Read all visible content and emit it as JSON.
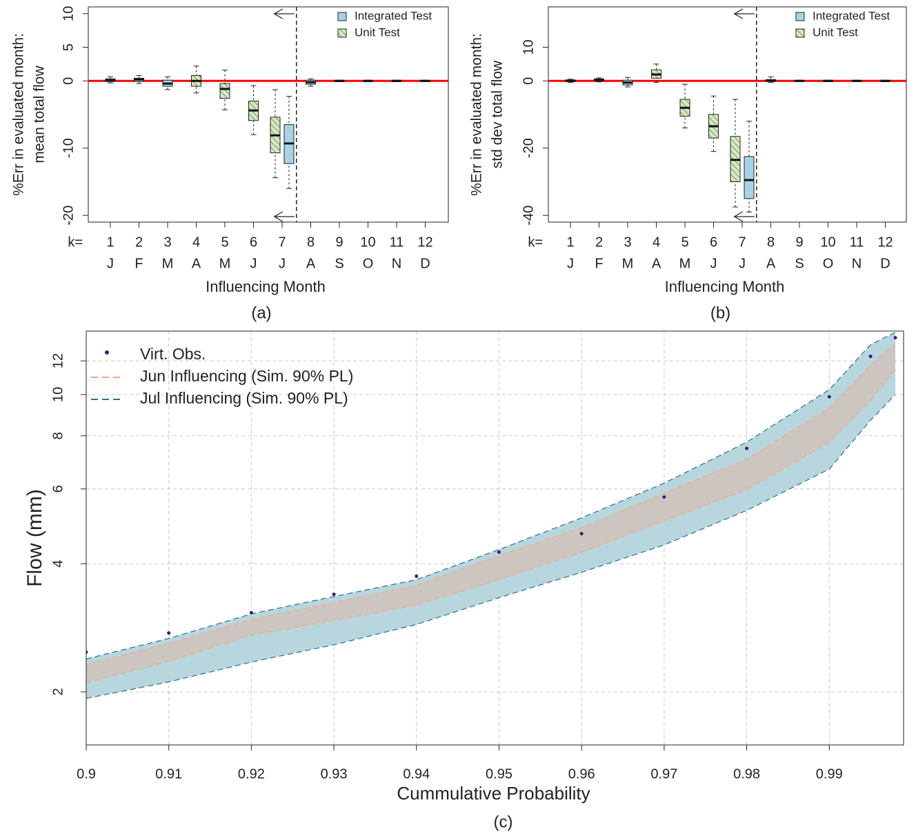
{
  "chart_data": [
    {
      "type": "box",
      "panel_label": "(a)",
      "y_label": [
        "%Err in evaluated month:",
        "mean total flow"
      ],
      "x_label": "Influencing Month",
      "x_prefix": "k=",
      "categories": [
        "1",
        "2",
        "3",
        "4",
        "5",
        "6",
        "7",
        "8",
        "9",
        "10",
        "11",
        "12"
      ],
      "category_letters": [
        "J",
        "F",
        "M",
        "A",
        "M",
        "J",
        "J",
        "A",
        "S",
        "O",
        "N",
        "D"
      ],
      "ylim": [
        -21,
        11
      ],
      "yticks": [
        -20,
        -10,
        0,
        5,
        10
      ],
      "hline": 0,
      "hline_color": "#ff0000",
      "vline": 7.5,
      "legend": "top-right",
      "series": [
        {
          "name": "Integrated Test",
          "color": "#a8d3e6",
          "pattern": "solid",
          "boxes": [
            {
              "low": -0.3,
              "q1": -0.1,
              "median": 0.1,
              "q3": 0.3,
              "high": 0.6
            },
            {
              "low": -0.4,
              "q1": -0.1,
              "median": 0.2,
              "q3": 0.4,
              "high": 0.8
            },
            {
              "low": -1.3,
              "q1": -0.8,
              "median": -0.4,
              "q3": 0.1,
              "high": 0.6
            },
            null,
            null,
            null,
            {
              "low": -16,
              "q1": -12.3,
              "median": -9.3,
              "q3": -6.5,
              "high": -2.3
            },
            {
              "low": -0.8,
              "q1": -0.5,
              "median": -0.2,
              "q3": 0.1,
              "high": 0.3
            },
            {
              "low": -0.1,
              "q1": 0,
              "median": 0,
              "q3": 0,
              "high": 0.1
            },
            {
              "low": -0.1,
              "q1": 0,
              "median": 0,
              "q3": 0,
              "high": 0.1
            },
            {
              "low": -0.1,
              "q1": 0,
              "median": 0,
              "q3": 0,
              "high": 0.1
            },
            {
              "low": -0.1,
              "q1": 0,
              "median": 0,
              "q3": 0,
              "high": 0.1
            }
          ]
        },
        {
          "name": "Unit Test",
          "color": "#d5e8c4",
          "pattern": "hatch",
          "boxes": [
            null,
            null,
            null,
            {
              "low": -1.8,
              "q1": -0.8,
              "median": 0,
              "q3": 0.8,
              "high": 2.2
            },
            {
              "low": -4.3,
              "q1": -2.6,
              "median": -1.2,
              "q3": -0.4,
              "high": 1.6
            },
            {
              "low": -8,
              "q1": -5.9,
              "median": -4.4,
              "q3": -3,
              "high": -0.7
            },
            {
              "low": -14.4,
              "q1": -10.7,
              "median": -8.1,
              "q3": -5.4,
              "high": -1.3
            },
            null,
            null,
            null,
            null,
            null
          ]
        }
      ]
    },
    {
      "type": "box",
      "panel_label": "(b)",
      "y_label": [
        "%Err in evaluated month:",
        "std dev total flow"
      ],
      "x_label": "Influencing Month",
      "x_prefix": "k=",
      "categories": [
        "1",
        "2",
        "3",
        "4",
        "5",
        "6",
        "7",
        "8",
        "9",
        "10",
        "11",
        "12"
      ],
      "category_letters": [
        "J",
        "F",
        "M",
        "A",
        "M",
        "J",
        "J",
        "A",
        "S",
        "O",
        "N",
        "D"
      ],
      "ylim": [
        -42,
        22
      ],
      "yticks": [
        -40,
        -20,
        0,
        10
      ],
      "hline": 0,
      "hline_color": "#ff0000",
      "vline": 7.5,
      "legend": "top-right",
      "series": [
        {
          "name": "Integrated Test",
          "color": "#a8d3e6",
          "pattern": "solid",
          "boxes": [
            {
              "low": -0.5,
              "q1": -0.2,
              "median": 0,
              "q3": 0.3,
              "high": 0.5
            },
            {
              "low": -0.3,
              "q1": 0,
              "median": 0.3,
              "q3": 0.6,
              "high": 0.9
            },
            {
              "low": -1.8,
              "q1": -1.2,
              "median": -0.5,
              "q3": 0.2,
              "high": 1
            },
            null,
            null,
            null,
            {
              "low": -39,
              "q1": -35,
              "median": -29.5,
              "q3": -22.5,
              "high": -12
            },
            {
              "low": -0.5,
              "q1": -0.2,
              "median": 0.1,
              "q3": 0.4,
              "high": 1.2
            },
            {
              "low": -0.2,
              "q1": 0,
              "median": 0,
              "q3": 0,
              "high": 0.2
            },
            {
              "low": -0.2,
              "q1": 0,
              "median": 0,
              "q3": 0,
              "high": 0.2
            },
            {
              "low": -0.2,
              "q1": 0,
              "median": 0,
              "q3": 0,
              "high": 0.2
            },
            {
              "low": -0.2,
              "q1": 0,
              "median": 0,
              "q3": 0,
              "high": 0.2
            }
          ]
        },
        {
          "name": "Unit Test",
          "color": "#d5e8c4",
          "pattern": "hatch",
          "boxes": [
            null,
            null,
            null,
            {
              "low": -0.5,
              "q1": 0.8,
              "median": 1.9,
              "q3": 3.3,
              "high": 5
            },
            {
              "low": -14,
              "q1": -10.5,
              "median": -8,
              "q3": -5.5,
              "high": -1
            },
            {
              "low": -21,
              "q1": -17,
              "median": -13.5,
              "q3": -10,
              "high": -4.5
            },
            {
              "low": -37.5,
              "q1": -30,
              "median": -23.5,
              "q3": -16.5,
              "high": -5.5
            },
            null,
            null,
            null,
            null,
            null
          ]
        }
      ]
    },
    {
      "type": "band",
      "panel_label": "(c)",
      "x_label": "Cummulative Probability",
      "y_label": "Flow (mm)",
      "log_y": true,
      "grid": true,
      "legend": "top-left",
      "xlim": [
        0.9,
        0.999
      ],
      "xticks": [
        0.9,
        0.91,
        0.92,
        0.93,
        0.94,
        0.95,
        0.96,
        0.97,
        0.98,
        0.99
      ],
      "ylim": [
        1.5,
        14.1
      ],
      "yticks": [
        2,
        4,
        6,
        8,
        10,
        12
      ],
      "x": [
        0.9,
        0.91,
        0.92,
        0.93,
        0.94,
        0.95,
        0.96,
        0.97,
        0.98,
        0.99,
        0.995,
        0.998
      ],
      "series": [
        {
          "name": "Virt. Obs.",
          "kind": "points",
          "color": "#3d1a78",
          "values": [
            2.48,
            2.75,
            3.07,
            3.39,
            3.74,
            4.26,
            4.71,
            5.74,
            7.47,
            9.88,
            12.3,
            13.6
          ]
        },
        {
          "name": "Jun Influencing (Sim. 90% PL)",
          "kind": "band",
          "color": "#f4a582",
          "fill": "#cdc6c0",
          "lower": [
            2.1,
            2.36,
            2.72,
            2.94,
            3.2,
            3.67,
            4.26,
            5.05,
            5.97,
            7.73,
            9.7,
            11.4
          ],
          "upper": [
            2.32,
            2.6,
            2.96,
            3.24,
            3.56,
            4.18,
            4.86,
            5.86,
            7.04,
            9.3,
            11.7,
            13.2
          ]
        },
        {
          "name": "Jul Influencing (Sim. 90% PL)",
          "kind": "band",
          "color": "#2b6f8a",
          "fill": "#b8d6de",
          "lower": [
            1.93,
            2.11,
            2.35,
            2.58,
            2.88,
            3.33,
            3.82,
            4.43,
            5.34,
            6.68,
            8.7,
            10.0
          ],
          "upper": [
            2.39,
            2.67,
            3.05,
            3.35,
            3.67,
            4.32,
            5.13,
            6.19,
            7.73,
            10.27,
            13.1,
            14.0
          ]
        }
      ]
    }
  ]
}
